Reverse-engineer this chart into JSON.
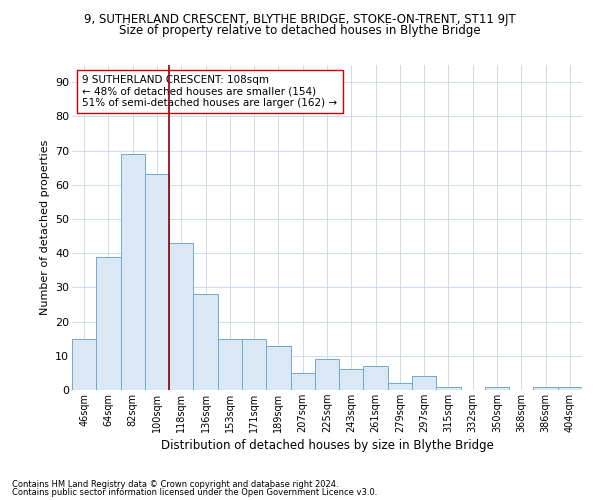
{
  "title_line1": "9, SUTHERLAND CRESCENT, BLYTHE BRIDGE, STOKE-ON-TRENT, ST11 9JT",
  "title_line2": "Size of property relative to detached houses in Blythe Bridge",
  "xlabel": "Distribution of detached houses by size in Blythe Bridge",
  "ylabel": "Number of detached properties",
  "footnote1": "Contains HM Land Registry data © Crown copyright and database right 2024.",
  "footnote2": "Contains public sector information licensed under the Open Government Licence v3.0.",
  "annotation_line1": "9 SUTHERLAND CRESCENT: 108sqm",
  "annotation_line2": "← 48% of detached houses are smaller (154)",
  "annotation_line3": "51% of semi-detached houses are larger (162) →",
  "bar_edge_color": "#6fa8d0",
  "bar_face_color": "#dae8f5",
  "vline_color": "#8b0000",
  "categories": [
    "46sqm",
    "64sqm",
    "82sqm",
    "100sqm",
    "118sqm",
    "136sqm",
    "153sqm",
    "171sqm",
    "189sqm",
    "207sqm",
    "225sqm",
    "243sqm",
    "261sqm",
    "279sqm",
    "297sqm",
    "315sqm",
    "332sqm",
    "350sqm",
    "368sqm",
    "386sqm",
    "404sqm"
  ],
  "values": [
    15,
    39,
    69,
    63,
    43,
    28,
    15,
    15,
    13,
    5,
    9,
    6,
    7,
    2,
    4,
    1,
    0,
    1,
    0,
    1,
    1
  ],
  "ylim": [
    0,
    95
  ],
  "yticks": [
    0,
    10,
    20,
    30,
    40,
    50,
    60,
    70,
    80,
    90
  ],
  "vline_x_index": 3.5,
  "bg_color": "#ffffff",
  "grid_color": "#c8d4e8",
  "annotation_box_color": "#ffffff",
  "annotation_box_edge": "#cc0000"
}
